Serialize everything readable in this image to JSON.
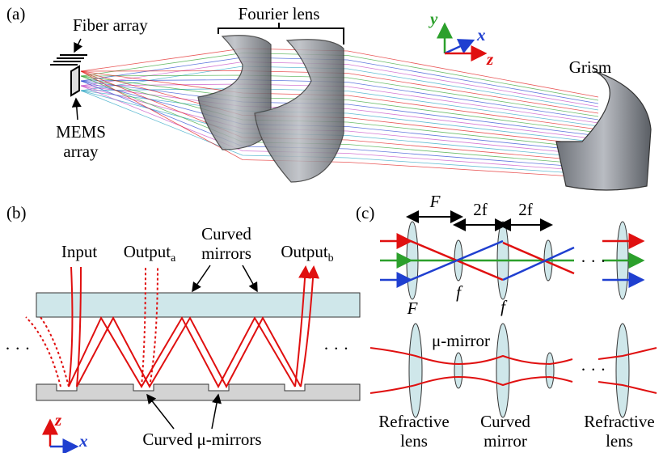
{
  "panel_a": {
    "label": "(a)",
    "fiber_array": "Fiber array",
    "fourier_lens": "Fourier lens",
    "mems_array": [
      "MEMS",
      "array"
    ],
    "grism": "Grism",
    "axes": {
      "y": "y",
      "x": "x",
      "z": "z"
    }
  },
  "panel_b": {
    "label": "(b)",
    "input": "Input",
    "output_a": {
      "text": "Output",
      "sub": "a"
    },
    "curved_mirrors": [
      "Curved",
      "mirrors"
    ],
    "output_b": {
      "text": "Output",
      "sub": "b"
    },
    "ellipsis": "· · ·",
    "curved_mu_mirrors": "Curved μ-mirrors",
    "axes": {
      "z": "z",
      "x": "x"
    }
  },
  "panel_c": {
    "label": "(c)",
    "big_f_top": "F",
    "two_f_1": "2f",
    "two_f_2": "2f",
    "small_f_1": "f",
    "small_f_2": "f",
    "big_f_bottom": "F",
    "ellipsis": "· · ·",
    "mu_mirror": "μ-mirror",
    "refractive_lens_1": [
      "Refractive",
      "lens"
    ],
    "curved_mirror": [
      "Curved",
      "mirror"
    ],
    "refractive_lens_2": [
      "Refractive",
      "lens"
    ]
  }
}
